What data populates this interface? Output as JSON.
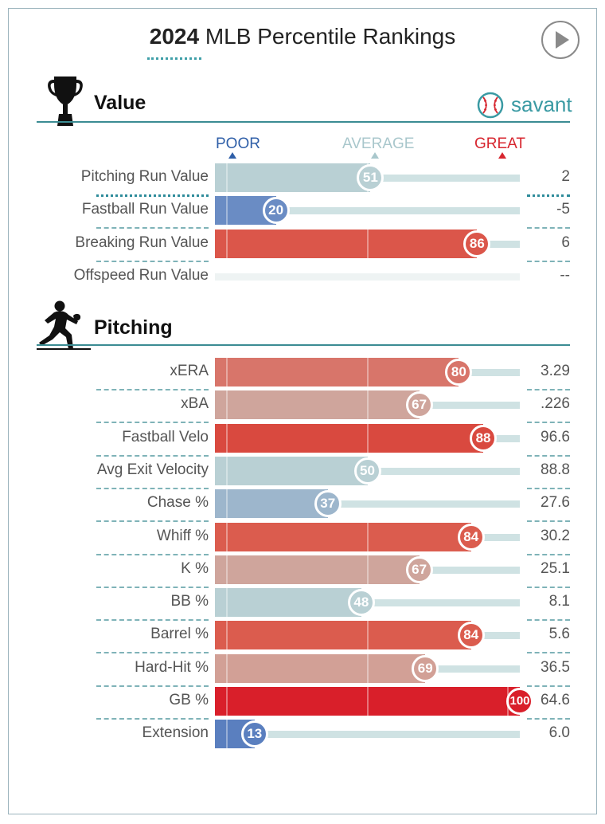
{
  "header": {
    "year": "2024",
    "title": "MLB Percentile Rankings"
  },
  "brand": {
    "name": "savant"
  },
  "icons": {
    "play": "play-icon",
    "trophy": "trophy-icon",
    "pitcher": "pitcher-icon",
    "baseball": "baseball-icon"
  },
  "scale": {
    "poor": "POOR",
    "average": "AVERAGE",
    "great": "GREAT"
  },
  "colors": {
    "poor_label": "#2f5fa8",
    "average_label": "#a9c7cc",
    "great_label": "#d7262f",
    "accent": "#3b8c93"
  },
  "chart_data": {
    "type": "bar",
    "xlim": [
      0,
      100
    ],
    "sections": [
      {
        "title": "Value",
        "metrics": [
          {
            "label": "Pitching Run Value",
            "percentile": 51,
            "value": "2",
            "color": "#b9d0d4"
          },
          {
            "label": "Fastball Run Value",
            "percentile": 20,
            "value": "-5",
            "color": "#6a8cc4"
          },
          {
            "label": "Breaking Run Value",
            "percentile": 86,
            "value": "6",
            "color": "#db564a"
          },
          {
            "label": "Offspeed Run Value",
            "percentile": null,
            "value": "--",
            "color": "#eef3f3"
          }
        ]
      },
      {
        "title": "Pitching",
        "metrics": [
          {
            "label": "xERA",
            "percentile": 80,
            "value": "3.29",
            "color": "#d8756a"
          },
          {
            "label": "xBA",
            "percentile": 67,
            "value": ".226",
            "color": "#cfa59c"
          },
          {
            "label": "Fastball Velo",
            "percentile": 88,
            "value": "96.6",
            "color": "#d9493f"
          },
          {
            "label": "Avg Exit Velocity",
            "percentile": 50,
            "value": "88.8",
            "color": "#b9d0d4"
          },
          {
            "label": "Chase %",
            "percentile": 37,
            "value": "27.6",
            "color": "#9db6cc"
          },
          {
            "label": "Whiff %",
            "percentile": 84,
            "value": "30.2",
            "color": "#db5c4e"
          },
          {
            "label": "K %",
            "percentile": 67,
            "value": "25.1",
            "color": "#cfa59c"
          },
          {
            "label": "BB %",
            "percentile": 48,
            "value": "8.1",
            "color": "#b9d0d4"
          },
          {
            "label": "Barrel %",
            "percentile": 84,
            "value": "5.6",
            "color": "#db5c4e"
          },
          {
            "label": "Hard-Hit %",
            "percentile": 69,
            "value": "36.5",
            "color": "#d2a096"
          },
          {
            "label": "GB %",
            "percentile": 100,
            "value": "64.6",
            "color": "#d91f2a"
          },
          {
            "label": "Extension",
            "percentile": 13,
            "value": "6.0",
            "color": "#5a7fbf"
          }
        ]
      }
    ]
  }
}
